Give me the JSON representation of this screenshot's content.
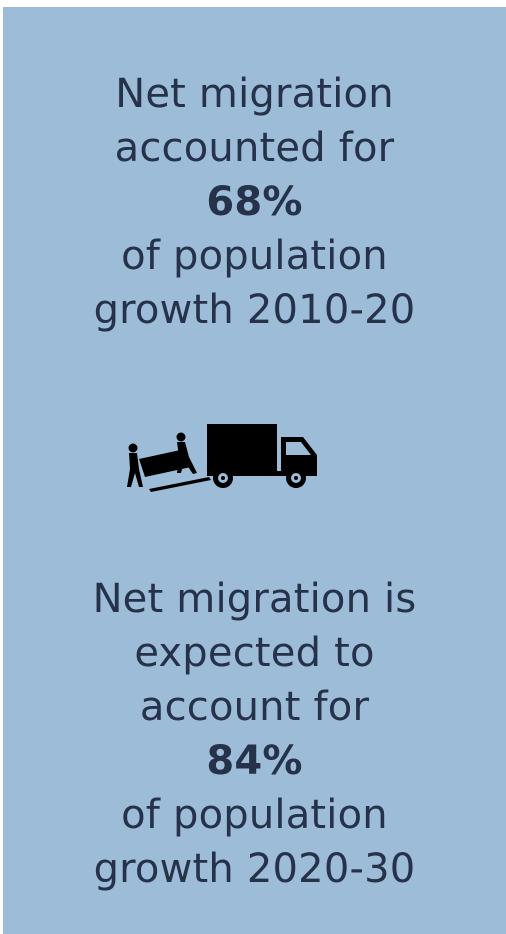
{
  "stat1": {
    "line1": "Net migration",
    "line2": "accounted for",
    "percent": "68%",
    "line3": "of population",
    "line4": "growth 2010-20"
  },
  "illustration": {
    "icon": "movers-truck-icon"
  },
  "stat2": {
    "line1": "Net migration is",
    "line2": "expected to",
    "line3": "account for",
    "percent": "84%",
    "line4": "of population",
    "line5": "growth 2020-30"
  },
  "colors": {
    "background": "#9dbcd7",
    "text": "#25324a"
  }
}
